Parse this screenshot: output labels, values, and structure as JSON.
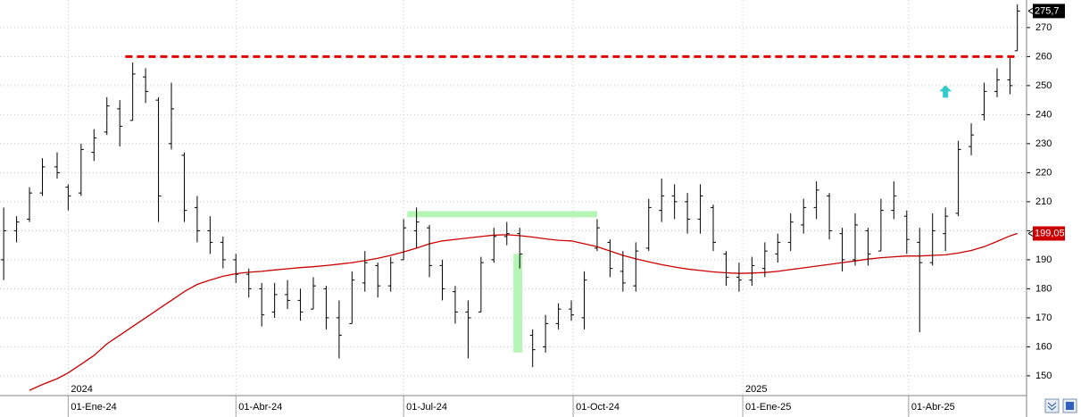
{
  "chart_data": {
    "type": "ohlc",
    "x": [
      "2023-11-27",
      "2023-12-04",
      "2023-12-11",
      "2023-12-18",
      "2023-12-26",
      "2024-01-01",
      "2024-01-08",
      "2024-01-15",
      "2024-01-22",
      "2024-01-29",
      "2024-02-05",
      "2024-02-12",
      "2024-02-19",
      "2024-02-26",
      "2024-03-04",
      "2024-03-11",
      "2024-03-18",
      "2024-03-25",
      "2024-04-01",
      "2024-04-08",
      "2024-04-15",
      "2024-04-22",
      "2024-04-29",
      "2024-05-06",
      "2024-05-13",
      "2024-05-20",
      "2024-05-27",
      "2024-06-03",
      "2024-06-10",
      "2024-06-17",
      "2024-06-24",
      "2024-07-01",
      "2024-07-08",
      "2024-07-15",
      "2024-07-22",
      "2024-07-29",
      "2024-08-05",
      "2024-08-12",
      "2024-08-19",
      "2024-08-26",
      "2024-09-02",
      "2024-09-09",
      "2024-09-16",
      "2024-09-23",
      "2024-09-30",
      "2024-10-07",
      "2024-10-14",
      "2024-10-21",
      "2024-10-28",
      "2024-11-04",
      "2024-11-11",
      "2024-11-18",
      "2024-11-25",
      "2024-12-02",
      "2024-12-09",
      "2024-12-16",
      "2024-12-23",
      "2024-12-30",
      "2025-01-06",
      "2025-01-13",
      "2025-01-20",
      "2025-01-27",
      "2025-02-03",
      "2025-02-10",
      "2025-02-17",
      "2025-02-24",
      "2025-03-03",
      "2025-03-10",
      "2025-03-17",
      "2025-03-24",
      "2025-03-31",
      "2025-04-07",
      "2025-04-14",
      "2025-04-21",
      "2025-04-28",
      "2025-05-05",
      "2025-05-12",
      "2025-05-19",
      "2025-05-26",
      "2025-05-30"
    ],
    "ohlc": {
      "color": "#000000",
      "open": [
        190,
        200,
        204,
        213,
        222,
        215,
        213,
        227,
        234,
        242,
        238,
        253,
        245,
        230,
        226,
        208,
        200,
        196,
        190,
        185,
        180,
        172,
        178,
        176,
        173,
        180,
        170,
        168,
        182,
        188,
        181,
        190,
        200,
        201,
        188,
        179,
        172,
        172,
        190,
        198,
        199,
        164,
        160,
        168,
        173,
        170,
        194,
        196,
        186,
        181,
        194,
        207,
        212,
        210,
        204,
        208,
        192,
        184,
        183,
        187,
        192,
        196,
        202,
        208,
        212,
        199,
        190,
        200,
        193,
        207,
        205,
        196,
        189,
        199,
        206,
        229,
        240,
        248,
        252,
        262
      ],
      "high": [
        208,
        205,
        215,
        225,
        227,
        216,
        230,
        235,
        246,
        245,
        258,
        256,
        246,
        251,
        227,
        212,
        205,
        198,
        192,
        187,
        182,
        182,
        183,
        180,
        184,
        181,
        176,
        186,
        193,
        189,
        191,
        204,
        208,
        202,
        190,
        181,
        176,
        191,
        201,
        203,
        201,
        166,
        171,
        175,
        176,
        186,
        204,
        197,
        193,
        196,
        211,
        218,
        216,
        213,
        216,
        209,
        193,
        189,
        191,
        196,
        199,
        206,
        211,
        217,
        213,
        201,
        206,
        201,
        211,
        217,
        207,
        201,
        206,
        208,
        231,
        237,
        251,
        256,
        260,
        278
      ],
      "low": [
        183,
        196,
        203,
        212,
        218,
        207,
        212,
        224,
        233,
        229,
        238,
        244,
        203,
        228,
        203,
        196,
        192,
        187,
        182,
        177,
        167,
        170,
        173,
        169,
        173,
        166,
        156,
        168,
        179,
        177,
        179,
        190,
        194,
        184,
        176,
        168,
        156,
        172,
        189,
        195,
        187,
        153,
        158,
        166,
        169,
        166,
        193,
        184,
        179,
        179,
        193,
        203,
        204,
        199,
        199,
        193,
        181,
        179,
        181,
        184,
        189,
        193,
        199,
        204,
        197,
        186,
        188,
        188,
        193,
        204,
        192,
        165,
        188,
        193,
        205,
        226,
        238,
        246,
        247,
        262
      ],
      "close": [
        200,
        203,
        213,
        222,
        220,
        212,
        228,
        232,
        243,
        236,
        254,
        248,
        212,
        242,
        207,
        200,
        196,
        190,
        185,
        180,
        171,
        178,
        176,
        172,
        181,
        170,
        164,
        183,
        189,
        181,
        189,
        201,
        203,
        188,
        180,
        172,
        170,
        189,
        198,
        199,
        192,
        159,
        168,
        173,
        171,
        183,
        201,
        187,
        182,
        193,
        208,
        212,
        210,
        204,
        212,
        196,
        184,
        183,
        188,
        193,
        196,
        203,
        208,
        214,
        200,
        190,
        202,
        192,
        207,
        212,
        197,
        189,
        200,
        205,
        228,
        233,
        248,
        252,
        250,
        275.7
      ],
      "last_label": "275,7"
    },
    "series": [
      {
        "color": "#cc0000",
        "last_label": "199,05",
        "values": [
          null,
          null,
          145,
          147,
          149,
          151,
          154,
          157,
          161,
          164,
          167,
          170,
          173,
          176,
          179,
          181.5,
          183,
          184.3,
          185.2,
          185.7,
          186,
          186.5,
          186.9,
          187.3,
          187.6,
          188,
          188.5,
          189,
          189.7,
          190.5,
          191.5,
          192.7,
          194,
          195.5,
          196.5,
          197,
          197.5,
          198,
          198.5,
          198.6,
          198.3,
          197.8,
          197.2,
          196.7,
          196.5,
          195.5,
          194.5,
          193,
          191.5,
          190.3,
          189.3,
          188.3,
          187.5,
          186.8,
          186.3,
          185.8,
          185.5,
          185.3,
          185.4,
          185.6,
          186,
          186.6,
          187.2,
          187.8,
          188.4,
          189,
          189.6,
          190.2,
          190.7,
          191,
          191.3,
          191.3,
          191.5,
          191.7,
          192.3,
          193.2,
          194.5,
          196.3,
          198.2,
          199.05
        ]
      }
    ],
    "xlim": [
      "2023-11-25",
      "2025-06-04"
    ],
    "xticks": [
      {
        "value": "2024-01-01",
        "label": "01-Ene-24"
      },
      {
        "value": "2024-04-01",
        "label": "01-Abr-24"
      },
      {
        "value": "2024-07-01",
        "label": "01-Jul-24"
      },
      {
        "value": "2024-10-01",
        "label": "01-Oct-24"
      },
      {
        "value": "2025-01-01",
        "label": "01-Ene-25"
      },
      {
        "value": "2025-04-01",
        "label": "01-Abr-25"
      }
    ],
    "year_labels": [
      {
        "value": "2024-01-01",
        "label": "2024"
      },
      {
        "value": "2025-01-01",
        "label": "2025"
      }
    ],
    "ylim": [
      143.2,
      279.5
    ],
    "yticks": [
      150,
      160,
      170,
      180,
      190,
      200,
      210,
      220,
      230,
      240,
      250,
      260,
      270
    ],
    "grid": true,
    "resistance": {
      "value": 260,
      "from": "2024-02-01",
      "to": "2025-05-30",
      "color": "#e00000"
    },
    "highlights": [
      {
        "from": "2024-07-03",
        "to": "2024-10-14",
        "value": 205.7,
        "color": "#b6f5b6"
      },
      {
        "at": "2024-09-01",
        "values": [
          192,
          158
        ],
        "color": "#b6f5b6"
      }
    ],
    "arrow": {
      "at": "2025-04-21",
      "value": 248,
      "color": "#33cccc"
    }
  }
}
